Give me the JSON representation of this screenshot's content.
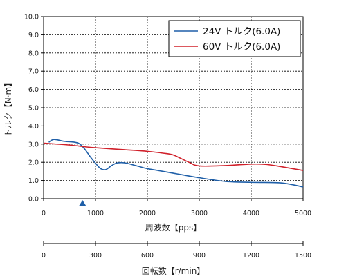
{
  "chart_data": {
    "type": "line",
    "title": "",
    "xlabel": "周波数【pps】",
    "ylabel": "トルク【N·m】",
    "xlim": [
      0,
      5000
    ],
    "ylim": [
      0,
      10
    ],
    "x_ticks": [
      0,
      1000,
      2000,
      3000,
      4000,
      5000
    ],
    "y_ticks": [
      0,
      1,
      2,
      3,
      4,
      5,
      6,
      7,
      8,
      9,
      10
    ],
    "y_tick_labels": [
      "0.0",
      "1.0",
      "2.0",
      "3.0",
      "4.0",
      "5.0",
      "6.0",
      "7.0",
      "8.0",
      "9.0",
      "10.0"
    ],
    "grid": true,
    "legend_position": "top-right",
    "marker": {
      "x": 750,
      "shape": "triangle",
      "color": "#1f5fa8"
    },
    "series": [
      {
        "name": "24V トルク(6.0A)",
        "color": "#1f5fa8",
        "x": [
          100,
          200,
          400,
          600,
          700,
          800,
          900,
          1000,
          1100,
          1200,
          1300,
          1400,
          1500,
          1600,
          1800,
          2000,
          2200,
          2500,
          3000,
          3500,
          4000,
          4500,
          4700,
          5000
        ],
        "y": [
          3.1,
          3.25,
          3.15,
          3.1,
          3.0,
          2.7,
          2.3,
          1.95,
          1.65,
          1.6,
          1.8,
          1.95,
          1.98,
          1.95,
          1.8,
          1.65,
          1.55,
          1.4,
          1.15,
          0.95,
          0.9,
          0.88,
          0.82,
          0.65
        ]
      },
      {
        "name": "60V トルク(6.0A)",
        "color": "#d0202a",
        "x": [
          0,
          500,
          800,
          1000,
          1500,
          2000,
          2300,
          2500,
          2800,
          3000,
          3500,
          4000,
          4300,
          4600,
          5000
        ],
        "y": [
          3.05,
          2.95,
          2.85,
          2.8,
          2.7,
          2.6,
          2.5,
          2.4,
          2.0,
          1.8,
          1.82,
          1.9,
          1.88,
          1.75,
          1.55
        ]
      }
    ],
    "secondary_axis": {
      "label": "回転数【r/min】",
      "range": [
        0,
        1500
      ],
      "ticks": [
        0,
        300,
        600,
        900,
        1200,
        1500
      ]
    }
  }
}
